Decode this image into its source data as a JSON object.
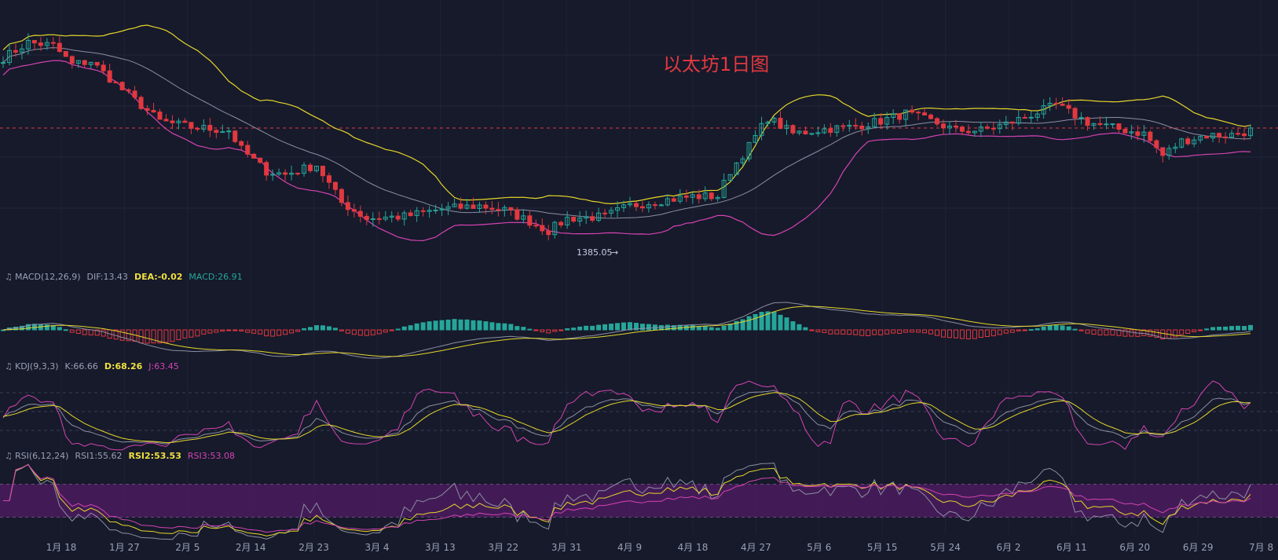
{
  "chart_data": {
    "type": "candlestick",
    "title": "以太坊1日图",
    "x_ticks": [
      "1月 18",
      "1月 27",
      "2月 5",
      "2月 14",
      "2月 23",
      "3月 4",
      "3月 13",
      "3月 22",
      "3月 31",
      "4月 9",
      "4月 18",
      "4月 27",
      "5月 6",
      "5月 15",
      "5月 24",
      "6月 2",
      "6月 11",
      "6月 20",
      "6月 29",
      "7月 8"
    ],
    "low_annotation": "1385.05",
    "bollinger": true,
    "indicators": {
      "macd": {
        "label": "MACD(12,26,9)",
        "dif": "DIF:13.43",
        "dea": "DEA:-0.02",
        "macd": "MACD:26.91"
      },
      "kdj": {
        "label": "KDJ(9,3,3)",
        "k": "K:66.66",
        "d": "D:68.26",
        "j": "J:63.45"
      },
      "rsi": {
        "label": "RSI(6,12,24)",
        "rsi1": "RSI1:55.62",
        "rsi2": "RSI2:53.53",
        "rsi3": "RSI3:53.08"
      }
    },
    "price_anchors": [
      [
        0,
        1660
      ],
      [
        4,
        1685
      ],
      [
        8,
        1680
      ],
      [
        11,
        1650
      ],
      [
        14,
        1655
      ],
      [
        19,
        1610
      ],
      [
        25,
        1560
      ],
      [
        30,
        1550
      ],
      [
        36,
        1545
      ],
      [
        38,
        1515
      ],
      [
        42,
        1480
      ],
      [
        45,
        1475
      ],
      [
        50,
        1490
      ],
      [
        54,
        1430
      ],
      [
        58,
        1405
      ],
      [
        64,
        1408
      ],
      [
        70,
        1420
      ],
      [
        76,
        1425
      ],
      [
        80,
        1418
      ],
      [
        84,
        1400
      ],
      [
        87,
        1385
      ],
      [
        90,
        1405
      ],
      [
        96,
        1408
      ],
      [
        100,
        1425
      ],
      [
        104,
        1432
      ],
      [
        110,
        1440
      ],
      [
        114,
        1440
      ],
      [
        116,
        1480
      ],
      [
        119,
        1520
      ],
      [
        122,
        1565
      ],
      [
        126,
        1540
      ],
      [
        132,
        1548
      ],
      [
        135,
        1550
      ],
      [
        140,
        1560
      ],
      [
        144,
        1572
      ],
      [
        148,
        1560
      ],
      [
        152,
        1545
      ],
      [
        156,
        1545
      ],
      [
        160,
        1555
      ],
      [
        164,
        1570
      ],
      [
        168,
        1585
      ],
      [
        173,
        1558
      ],
      [
        178,
        1547
      ],
      [
        182,
        1540
      ],
      [
        185,
        1505
      ],
      [
        188,
        1528
      ],
      [
        192,
        1537
      ],
      [
        196,
        1538
      ],
      [
        199,
        1545
      ]
    ],
    "colors": {
      "up": "#26a69a",
      "down": "#e2383f",
      "bb_mid": "#8c8fa3",
      "bb_up": "#e6d52a",
      "bb_low": "#d543b1",
      "rsi_band": "#4a1c5e"
    }
  }
}
